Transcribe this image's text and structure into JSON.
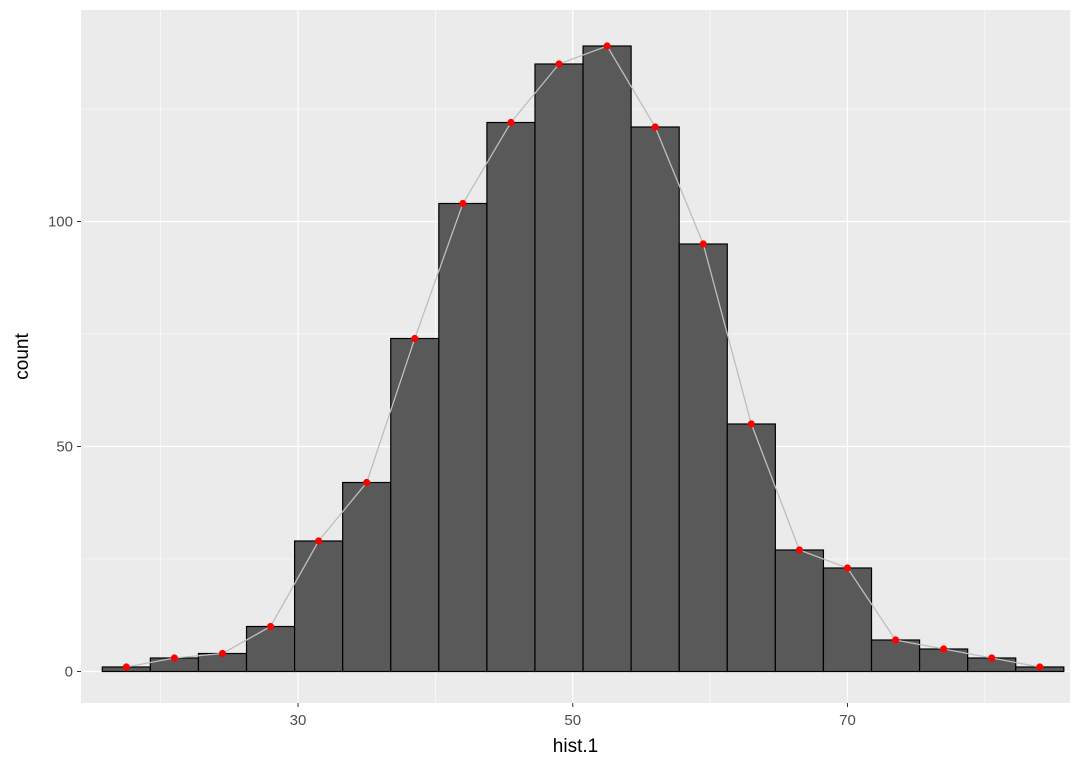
{
  "chart_data": {
    "type": "bar",
    "xlabel": "hist.1",
    "ylabel": "count",
    "xlim": [
      14.2,
      86.2
    ],
    "ylim": [
      -7,
      147
    ],
    "x_major_ticks": [
      30,
      50,
      70
    ],
    "x_minor_ticks": [
      20,
      40,
      60,
      80
    ],
    "y_major_ticks": [
      0,
      50,
      100
    ],
    "y_minor_ticks": [
      25,
      75,
      125
    ],
    "x_tick_labels": [
      "30",
      "50",
      "70"
    ],
    "y_tick_labels": [
      "0",
      "50",
      "100"
    ],
    "bins": {
      "centers": [
        17.5,
        21.0,
        24.5,
        28.0,
        31.5,
        35.0,
        38.5,
        42.0,
        45.5,
        49.0,
        52.5,
        56.0,
        59.5,
        63.0,
        66.5,
        70.0,
        73.5,
        77.0,
        80.5,
        84.0
      ],
      "width": 3.5,
      "counts": [
        1,
        3,
        4,
        10,
        29,
        42,
        74,
        104,
        122,
        135,
        139,
        121,
        95,
        55,
        27,
        23,
        7,
        5,
        3,
        1
      ]
    },
    "overlay": {
      "type": "line+points",
      "line_color": "#bebebe",
      "point_color": "#ff0000",
      "x": [
        17.5,
        21.0,
        24.5,
        28.0,
        31.5,
        35.0,
        38.5,
        42.0,
        45.5,
        49.0,
        52.5,
        56.0,
        59.5,
        63.0,
        66.5,
        70.0,
        73.5,
        77.0,
        80.5,
        84.0
      ],
      "y": [
        1,
        3,
        4,
        10,
        29,
        42,
        74,
        104,
        122,
        135,
        139,
        121,
        95,
        55,
        27,
        23,
        7,
        5,
        3,
        1
      ]
    },
    "colors": {
      "panel": "#ebebeb",
      "grid": "#ffffff",
      "bar_fill": "#595959",
      "bar_outline": "#000000"
    },
    "grid": true,
    "legend": "none"
  }
}
